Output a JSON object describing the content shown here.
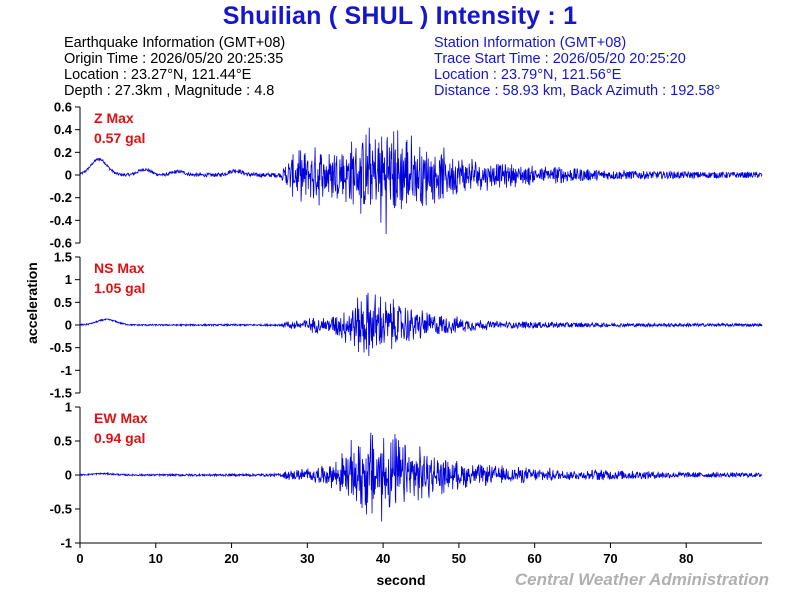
{
  "title": "Shuilian ( SHUL ) Intensity : 1",
  "earthquake_info": {
    "heading": "Earthquake Information  (GMT+08)",
    "origin_time": "Origin Time : 2026/05/20 20:25:35",
    "location": "Location : 23.27°N, 121.44°E",
    "depth_magnitude": "Depth : 27.3km , Magnitude : 4.8"
  },
  "station_info": {
    "heading": "Station Information  (GMT+08)",
    "trace_start": "Trace Start Time : 2026/05/20 20:25:20",
    "location": "Location : 23.79°N, 121.56°E",
    "distance": "Distance : 58.93 km, Back Azimuth : 192.58°"
  },
  "credit": "Central Weather Administration",
  "colors": {
    "title": "#1616cc",
    "trace": "#0000dd",
    "max_label": "#dd1111",
    "credit": "#b0b0b0"
  },
  "chart_data": {
    "type": "line",
    "xlabel": "second",
    "ylabel": "acceleration",
    "x_range": [
      0,
      90
    ],
    "x_ticks": [
      0,
      10,
      20,
      30,
      40,
      50,
      60,
      70,
      80
    ],
    "series": [
      {
        "name": "Z",
        "max_label": "Z Max",
        "max_value": "0.57 gal",
        "ylim": [
          -0.6,
          0.6
        ],
        "y_ticks": [
          0.6,
          0.4,
          0.2,
          0,
          -0.2,
          -0.4,
          -0.6
        ],
        "envelope": [
          [
            0,
            0.01
          ],
          [
            26.5,
            0.02
          ],
          [
            27.5,
            0.2
          ],
          [
            30,
            0.27
          ],
          [
            35,
            0.33
          ],
          [
            37,
            0.4
          ],
          [
            39,
            0.5
          ],
          [
            40.5,
            0.55
          ],
          [
            43,
            0.42
          ],
          [
            46,
            0.3
          ],
          [
            50,
            0.2
          ],
          [
            55,
            0.13
          ],
          [
            60,
            0.1
          ],
          [
            65,
            0.06
          ],
          [
            70,
            0.04
          ],
          [
            80,
            0.03
          ],
          [
            90,
            0.025
          ]
        ],
        "low_freq": [
          [
            2.5,
            0.14,
            1.5
          ],
          [
            8.5,
            0.05,
            1.2
          ],
          [
            13,
            0.03,
            1.2
          ],
          [
            20.5,
            0.04,
            1.2
          ]
        ]
      },
      {
        "name": "NS",
        "max_label": "NS Max",
        "max_value": "1.05 gal",
        "ylim": [
          -1.5,
          1.5
        ],
        "y_ticks": [
          1.5,
          1,
          0.5,
          0,
          -0.5,
          -1,
          -1.5
        ],
        "envelope": [
          [
            0,
            0.015
          ],
          [
            26.5,
            0.02
          ],
          [
            27.5,
            0.1
          ],
          [
            30,
            0.18
          ],
          [
            33,
            0.22
          ],
          [
            35,
            0.45
          ],
          [
            37,
            0.8
          ],
          [
            38.5,
            0.9
          ],
          [
            40,
            0.75
          ],
          [
            42,
            0.6
          ],
          [
            44,
            0.45
          ],
          [
            47,
            0.3
          ],
          [
            50,
            0.2
          ],
          [
            55,
            0.1
          ],
          [
            60,
            0.07
          ],
          [
            70,
            0.04
          ],
          [
            90,
            0.03
          ]
        ],
        "low_freq": [
          [
            3.5,
            0.12,
            1.8
          ]
        ]
      },
      {
        "name": "EW",
        "max_label": "EW Max",
        "max_value": "0.94 gal",
        "ylim": [
          -1,
          1
        ],
        "y_ticks": [
          1,
          0.5,
          0,
          -0.5,
          -1
        ],
        "envelope": [
          [
            0,
            0.01
          ],
          [
            26.5,
            0.02
          ],
          [
            27.5,
            0.08
          ],
          [
            30,
            0.12
          ],
          [
            33,
            0.18
          ],
          [
            36,
            0.55
          ],
          [
            38.5,
            0.82
          ],
          [
            40.5,
            0.75
          ],
          [
            43,
            0.55
          ],
          [
            46,
            0.4
          ],
          [
            49,
            0.25
          ],
          [
            53,
            0.18
          ],
          [
            60,
            0.12
          ],
          [
            70,
            0.07
          ],
          [
            80,
            0.04
          ],
          [
            90,
            0.03
          ]
        ],
        "low_freq": [
          [
            3,
            0.02,
            2.0
          ]
        ]
      }
    ]
  }
}
